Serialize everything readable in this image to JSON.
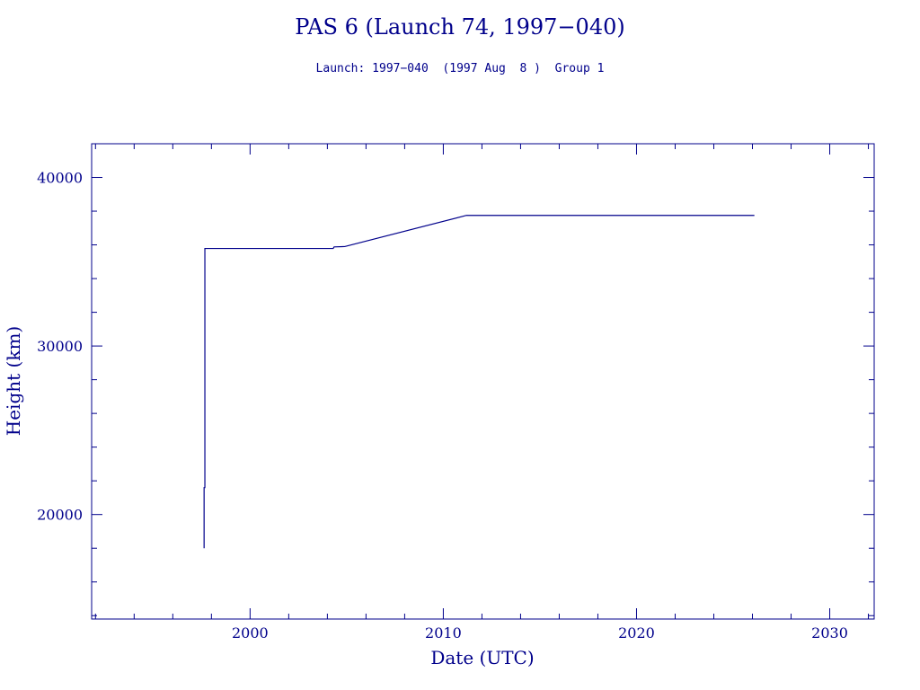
{
  "chart_data": {
    "type": "line",
    "title": "PAS 6 (Launch 74, 1997−040)",
    "subtitle": "Launch: 1997−040  (1997 Aug  8 )  Group 1",
    "xlabel": "Date (UTC)",
    "ylabel": "Height (km)",
    "xlim": [
      1991.8,
      2032.3
    ],
    "ylim": [
      13800,
      42000
    ],
    "x_ticks": [
      2000,
      2010,
      2020,
      2030
    ],
    "x_tick_labels": [
      "2000",
      "2010",
      "2020",
      "2030"
    ],
    "y_ticks": [
      20000,
      30000,
      40000
    ],
    "y_tick_labels": [
      "20000",
      "30000",
      "40000"
    ],
    "x_minor_step": 2,
    "y_minor_step": 2000,
    "grid": false,
    "line_color": "#00008b",
    "series": [
      {
        "values": [
          [
            1997.62,
            18000
          ],
          [
            1997.62,
            21600
          ],
          [
            1997.66,
            21600
          ],
          [
            1997.66,
            35786
          ],
          [
            2004.3,
            35786
          ],
          [
            2004.35,
            35880
          ],
          [
            2004.9,
            35900
          ],
          [
            2011.2,
            37750
          ],
          [
            2026.1,
            37750
          ]
        ]
      }
    ]
  }
}
